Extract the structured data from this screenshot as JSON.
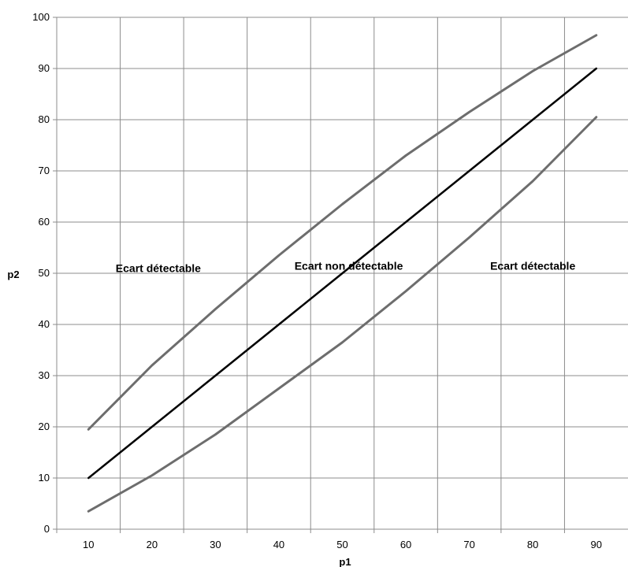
{
  "chart_data": {
    "type": "line",
    "title": "",
    "xlabel": "p1",
    "ylabel": "p2",
    "xlim": [
      5,
      95
    ],
    "ylim": [
      0,
      100
    ],
    "xticks": [
      10,
      20,
      30,
      40,
      50,
      60,
      70,
      80,
      90
    ],
    "yticks": [
      0,
      10,
      20,
      30,
      40,
      50,
      60,
      70,
      80,
      90,
      100
    ],
    "grid": true,
    "x": [
      10,
      20,
      30,
      40,
      50,
      60,
      70,
      80,
      90
    ],
    "series": [
      {
        "values": [
          19.5,
          32,
          43,
          53.5,
          63.5,
          73,
          81.5,
          89.5,
          96.5
        ],
        "color": "#6d6d6d"
      },
      {
        "values": [
          10,
          20,
          30,
          40,
          50,
          60,
          70,
          80,
          90
        ],
        "color": "#000000"
      },
      {
        "values": [
          3.5,
          10.5,
          18.5,
          27.5,
          36.5,
          46.5,
          57,
          68,
          80.5
        ],
        "color": "#6d6d6d"
      }
    ],
    "annotations": [
      {
        "text": "Ecart détectable",
        "x": 21,
        "y": 51
      },
      {
        "text": "Ecart non détectable",
        "x": 51,
        "y": 51.5
      },
      {
        "text": "Ecart détectable",
        "x": 80,
        "y": 51.5
      }
    ]
  }
}
